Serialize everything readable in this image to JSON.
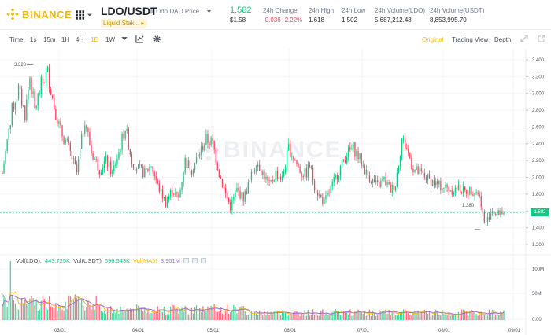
{
  "header": {
    "logo_text": "BINANCE",
    "pair": "LDO/USDT",
    "pair_name": "Lido DAO Price",
    "tag": "Liquid Stak...",
    "last_price": "1.582",
    "last_price_usd": "$1.58",
    "stats": [
      {
        "label": "24h Change",
        "value": "-0.036 -2.22%",
        "negative": true
      },
      {
        "label": "24h High",
        "value": "1.618"
      },
      {
        "label": "24h Low",
        "value": "1.502"
      },
      {
        "label": "24h Volume(LDO)",
        "value": "5,687,212.48"
      },
      {
        "label": "24h Volume(USDT)",
        "value": "8,853,995.70"
      }
    ]
  },
  "toolbar": {
    "intervals": [
      "Time",
      "1s",
      "15m",
      "1H",
      "4H",
      "1D",
      "1W"
    ],
    "active_interval": "1D",
    "views": [
      "Original",
      "Trading View",
      "Depth"
    ],
    "active_view": "Original"
  },
  "chart_data": {
    "type": "candlestick",
    "price_axis": [
      "3.400",
      "3.200",
      "3.000",
      "2.800",
      "2.600",
      "2.400",
      "2.200",
      "2.000",
      "1.800",
      "1.600",
      "1.400",
      "1.200"
    ],
    "volume_axis": [
      "100M",
      "50M",
      "0.00"
    ],
    "date_axis": [
      "03/01",
      "04/01",
      "05/01",
      "06/01",
      "07/01",
      "08/01",
      "09/01"
    ],
    "max_marker": "3.328",
    "min_marker": "1.380",
    "last_price_label": "1.582",
    "ylim": [
      1.2,
      3.4
    ],
    "keypoints": [
      [
        0,
        2.05
      ],
      [
        6,
        2.8
      ],
      [
        10,
        3.05
      ],
      [
        14,
        2.75
      ],
      [
        17,
        3.2
      ],
      [
        20,
        2.8
      ],
      [
        24,
        3.1
      ],
      [
        28,
        3.25
      ],
      [
        32,
        2.85
      ],
      [
        36,
        2.55
      ],
      [
        41,
        2.35
      ],
      [
        46,
        2.05
      ],
      [
        51,
        2.7
      ],
      [
        55,
        2.3
      ],
      [
        60,
        2.1
      ],
      [
        64,
        2.2
      ],
      [
        68,
        2.05
      ],
      [
        72,
        2.3
      ],
      [
        76,
        2.6
      ],
      [
        80,
        2.2
      ],
      [
        84,
        2.1
      ],
      [
        88,
        2.05
      ],
      [
        92,
        2.15
      ],
      [
        96,
        1.9
      ],
      [
        101,
        1.7
      ],
      [
        105,
        1.85
      ],
      [
        109,
        1.75
      ],
      [
        113,
        2.2
      ],
      [
        117,
        2.1
      ],
      [
        121,
        2.25
      ],
      [
        126,
        2.45
      ],
      [
        130,
        2.4
      ],
      [
        134,
        2.05
      ],
      [
        138,
        1.8
      ],
      [
        141,
        1.65
      ],
      [
        145,
        1.85
      ],
      [
        149,
        1.75
      ],
      [
        153,
        1.95
      ],
      [
        157,
        2.2
      ],
      [
        161,
        2.05
      ],
      [
        165,
        1.9
      ],
      [
        169,
        2.05
      ],
      [
        173,
        1.98
      ],
      [
        177,
        2.35
      ],
      [
        181,
        2.2
      ],
      [
        185,
        2.05
      ],
      [
        188,
        2.05
      ],
      [
        190,
        2.15
      ],
      [
        193,
        1.9
      ],
      [
        196,
        1.78
      ],
      [
        199,
        1.7
      ],
      [
        202,
        1.82
      ],
      [
        205,
        1.95
      ],
      [
        209,
        2.12
      ],
      [
        213,
        2.28
      ],
      [
        217,
        2.35
      ],
      [
        221,
        2.22
      ],
      [
        225,
        2.05
      ],
      [
        229,
        1.95
      ],
      [
        232,
        1.9
      ],
      [
        236,
        1.97
      ],
      [
        240,
        1.85
      ],
      [
        243,
        1.92
      ],
      [
        247,
        2.45
      ],
      [
        250,
        2.35
      ],
      [
        254,
        2.1
      ],
      [
        258,
        2.05
      ],
      [
        262,
        2.0
      ],
      [
        266,
        1.95
      ],
      [
        270,
        1.9
      ],
      [
        274,
        1.88
      ],
      [
        278,
        1.85
      ],
      [
        282,
        1.87
      ],
      [
        286,
        1.83
      ],
      [
        290,
        1.85
      ],
      [
        294,
        1.82
      ],
      [
        296,
        1.7
      ],
      [
        298,
        1.45
      ],
      [
        300,
        1.5
      ],
      [
        303,
        1.62
      ],
      [
        305,
        1.55
      ],
      [
        308,
        1.6
      ],
      [
        310,
        1.58
      ]
    ],
    "volume_peak_day": 5
  },
  "volume_legend": {
    "label": "Vol(LDO):",
    "ldo_value": "443.725K",
    "usdt_label": "Vol(USDT)",
    "usdt_value": "696.543K",
    "extra1": "Vol(MA5)",
    "extra2": "3.901M"
  },
  "colors": {
    "up": "#0ecb81",
    "down": "#f6465d",
    "accent": "#f0b90b",
    "ma": "#9b6bd9"
  }
}
